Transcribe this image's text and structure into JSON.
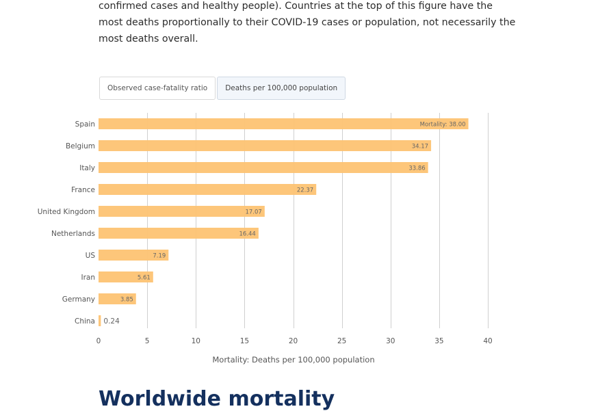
{
  "intro": {
    "text": "confirmed cases and healthy people). Countries at the top of this figure have the most deaths proportionally to their COVID-19 cases or population, not necessarily the most deaths overall."
  },
  "tabs": [
    {
      "label": "Observed case-fatality ratio",
      "active": false
    },
    {
      "label": "Deaths per 100,000 population",
      "active": true
    }
  ],
  "bottom_heading": "Worldwide mortality",
  "colors": {
    "bar": "#fdc373",
    "grid": "#cfcfcf",
    "label": "#555555",
    "heading": "#14305e"
  },
  "chart_data": {
    "type": "bar",
    "orientation": "horizontal",
    "categories": [
      "Spain",
      "Belgium",
      "Italy",
      "France",
      "United Kingdom",
      "Netherlands",
      "US",
      "Iran",
      "Germany",
      "China"
    ],
    "values": [
      38.0,
      34.17,
      33.86,
      22.37,
      17.07,
      16.44,
      7.19,
      5.61,
      3.85,
      0.24
    ],
    "data_labels": [
      "Mortality: 38.00",
      "34.17",
      "33.86",
      "22.37",
      "17.07",
      "16.44",
      "7.19",
      "5.61",
      "3.85",
      "0.24"
    ],
    "title": "",
    "xlabel": "Mortality: Deaths per 100,000 population",
    "ylabel": "",
    "xlim": [
      0,
      40
    ],
    "xticks": [
      0,
      5,
      10,
      15,
      20,
      25,
      30,
      35,
      40
    ],
    "grid": true,
    "legend": "none"
  }
}
